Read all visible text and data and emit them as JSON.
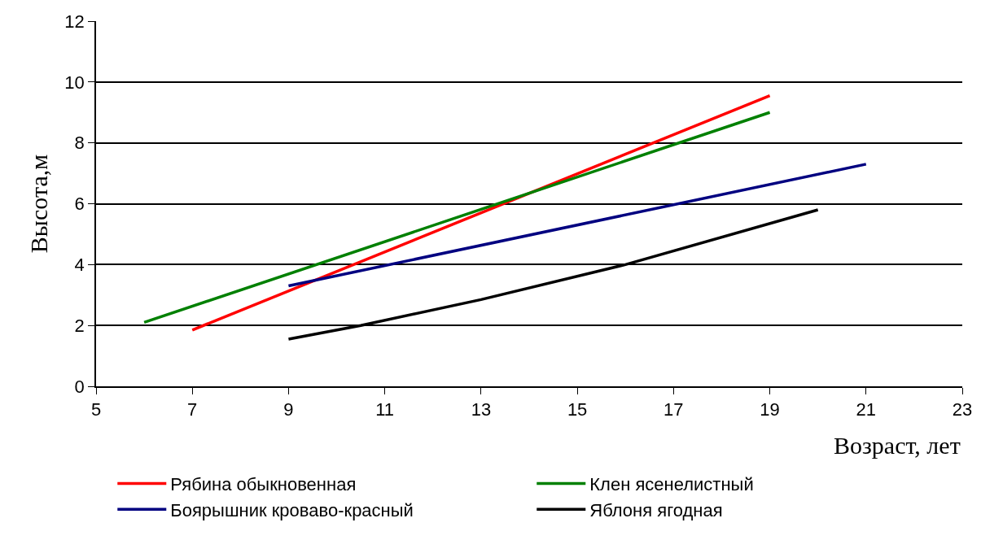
{
  "chart_data": {
    "type": "line",
    "xlabel": "Возраст, лет",
    "ylabel": "Высота,м",
    "series": [
      {
        "name": "Рябина обыкновенная",
        "color": "#ff0000",
        "x": [
          7,
          19
        ],
        "values": [
          1.85,
          9.55
        ]
      },
      {
        "name": "Клен ясенелистный",
        "color": "#008000",
        "x": [
          6,
          19
        ],
        "values": [
          2.1,
          9.0
        ]
      },
      {
        "name": "Боярышник кроваво-красный",
        "color": "#000080",
        "x": [
          9,
          21
        ],
        "values": [
          3.3,
          7.3
        ]
      },
      {
        "name": "Яблоня ягодная",
        "color": "#000000",
        "x": [
          9,
          10.5,
          13,
          16,
          20
        ],
        "values": [
          1.55,
          2.0,
          2.85,
          4.0,
          5.8
        ]
      }
    ],
    "xlim": [
      5,
      23
    ],
    "xticks": [
      5,
      7,
      9,
      11,
      13,
      15,
      17,
      19,
      21,
      23
    ],
    "ylim": [
      0,
      12
    ],
    "yticks": [
      0,
      2,
      4,
      6,
      8,
      10,
      12
    ],
    "grid": "y",
    "legend": "bottom",
    "marker": "none",
    "line_style": "solid"
  }
}
